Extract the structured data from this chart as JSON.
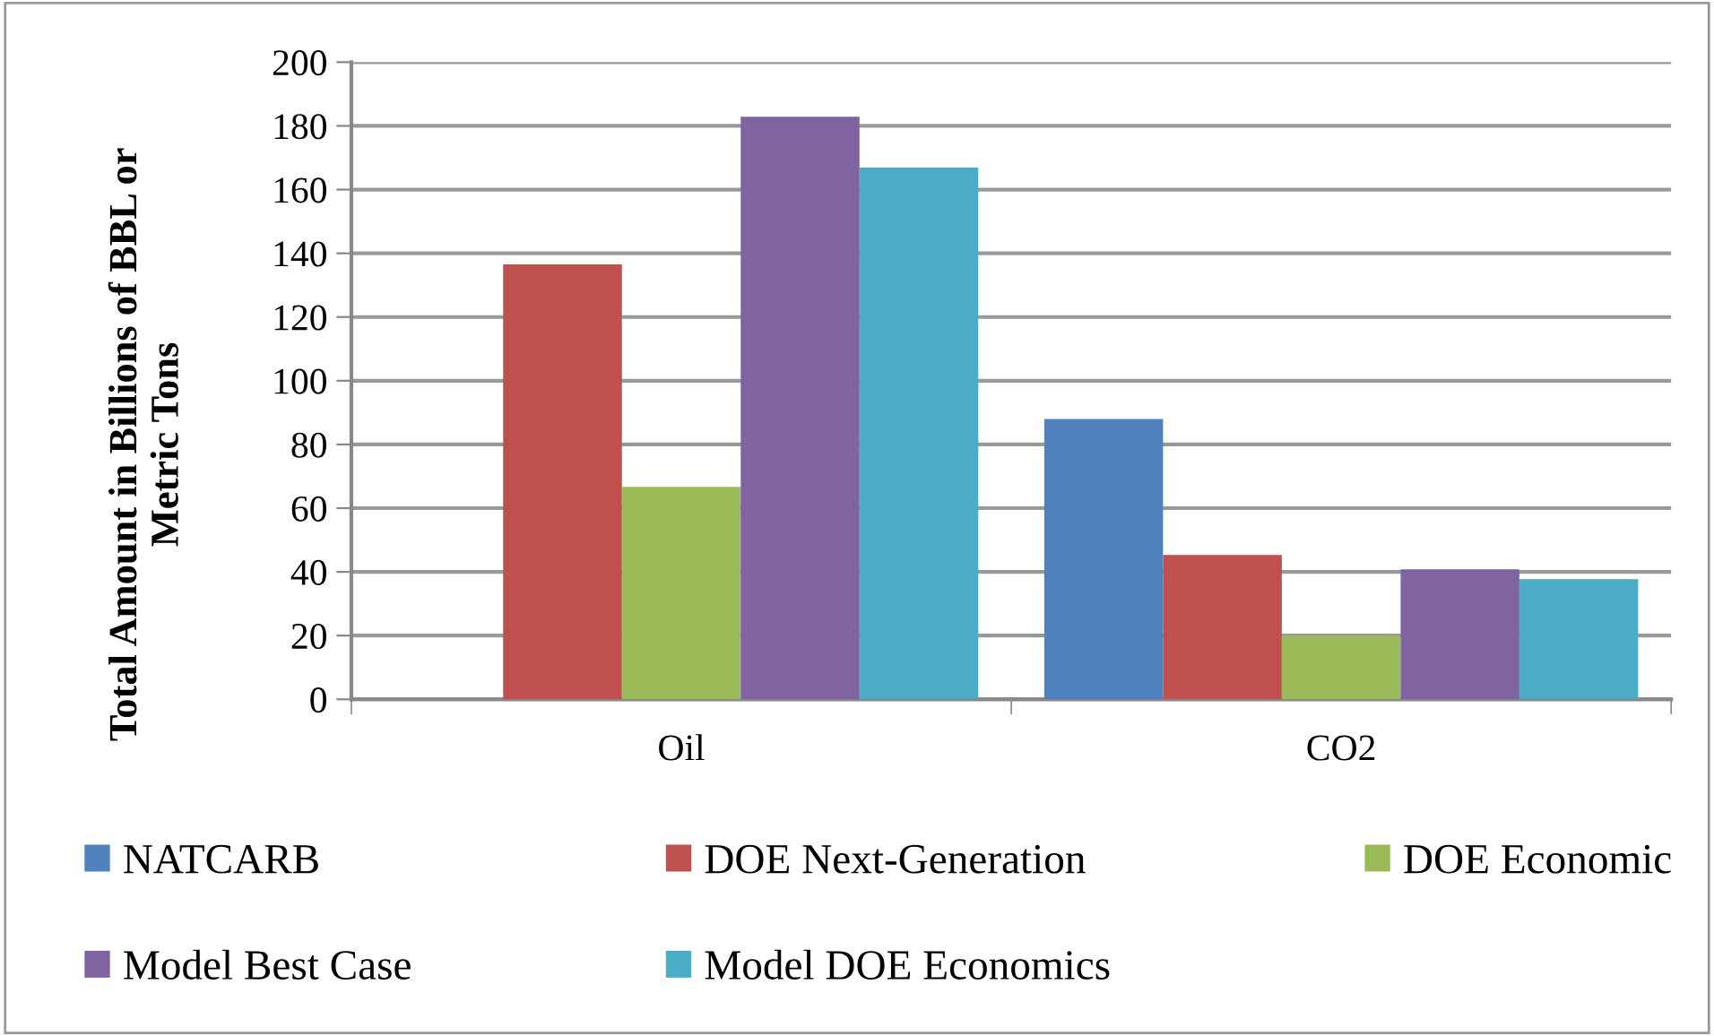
{
  "chart_data": {
    "type": "bar",
    "ylabel": "Total Amount in Billions of BBL or\nMetric Tons",
    "categories": [
      "Oil",
      "CO2"
    ],
    "series": [
      {
        "name": "NATCARB",
        "color": "#4f81bd",
        "values": [
          null,
          88
        ]
      },
      {
        "name": "DOE Next-Generation",
        "color": "#c0504d",
        "values": [
          136.5,
          45.3
        ]
      },
      {
        "name": "DOE Economic",
        "color": "#9bbb59",
        "values": [
          66.7,
          20
        ]
      },
      {
        "name": "Model Best Case",
        "color": "#8064a2",
        "values": [
          182.9,
          40.8
        ]
      },
      {
        "name": "Model DOE Economics",
        "color": "#4bacc6",
        "values": [
          166.9,
          37.7
        ]
      }
    ],
    "ylim": [
      0,
      200
    ],
    "yticks": [
      0,
      20,
      40,
      60,
      80,
      100,
      120,
      140,
      160,
      180,
      200
    ],
    "grid": "y",
    "legend": "bottom"
  }
}
